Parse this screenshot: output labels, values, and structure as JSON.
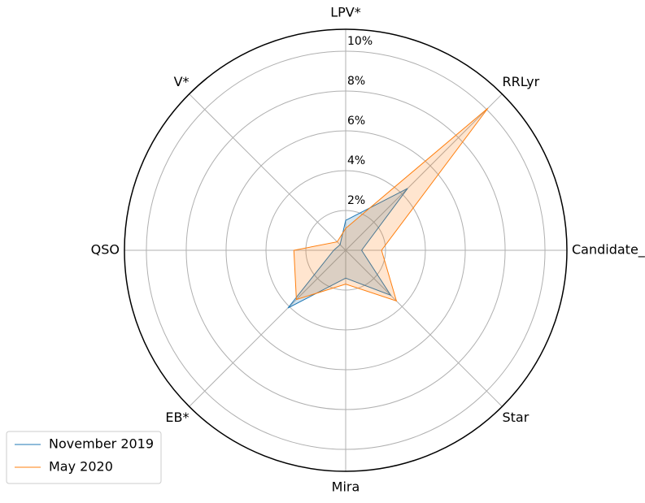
{
  "chart_data": {
    "type": "radar",
    "categories": [
      "LPV*",
      "RRLyr",
      "Candidate_RRLyr",
      "Star",
      "Mira",
      "EB*",
      "QSO",
      "V*"
    ],
    "series": [
      {
        "name": "November 2019",
        "color": "#1f77b4",
        "values": [
          1.5,
          4.4,
          0.8,
          3.2,
          1.4,
          4.1,
          0.6,
          0.4
        ]
      },
      {
        "name": "May 2020",
        "color": "#ff7f0e",
        "values": [
          1.1,
          10.1,
          1.8,
          3.6,
          1.7,
          3.5,
          2.6,
          0.6
        ]
      }
    ],
    "ylim": [
      0,
      11.1
    ],
    "yticks": [
      {
        "value": 2,
        "label": "2%"
      },
      {
        "value": 4,
        "label": "4%"
      },
      {
        "value": 6,
        "label": "6%"
      },
      {
        "value": 8,
        "label": "8%"
      },
      {
        "value": 10,
        "label": "10%"
      }
    ],
    "grid": true,
    "legend": "lower left"
  }
}
